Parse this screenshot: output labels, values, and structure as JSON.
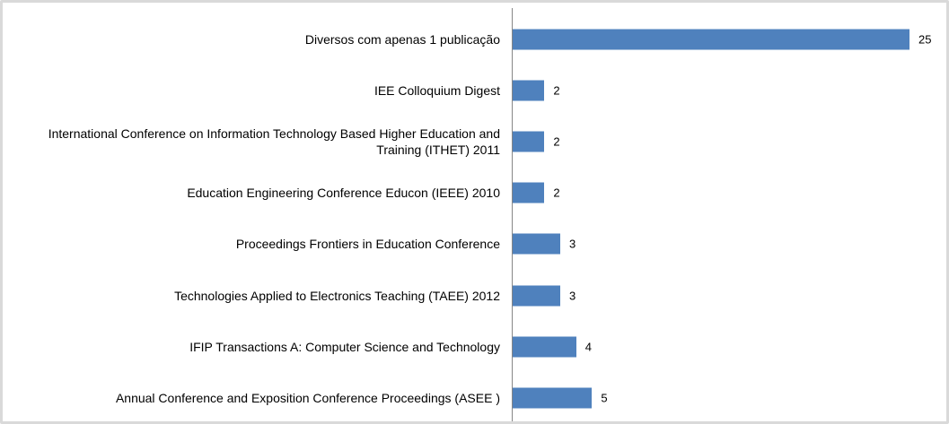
{
  "chart_data": {
    "type": "bar",
    "orientation": "horizontal",
    "categories": [
      "Diversos com apenas 1 publicação",
      "IEE Colloquium Digest",
      "International Conference on Information Technology Based Higher Education and Training (ITHET) 2011",
      "Education Engineering Conference Educon (IEEE) 2010",
      "Proceedings Frontiers in Education Conference",
      "Technologies Applied to Electronics Teaching (TAEE) 2012",
      "IFIP Transactions A: Computer Science and Technology",
      "Annual Conference and Exposition Conference Proceedings (ASEE )"
    ],
    "values": [
      25,
      2,
      2,
      2,
      3,
      3,
      4,
      5
    ],
    "color": "#4f81bd"
  }
}
